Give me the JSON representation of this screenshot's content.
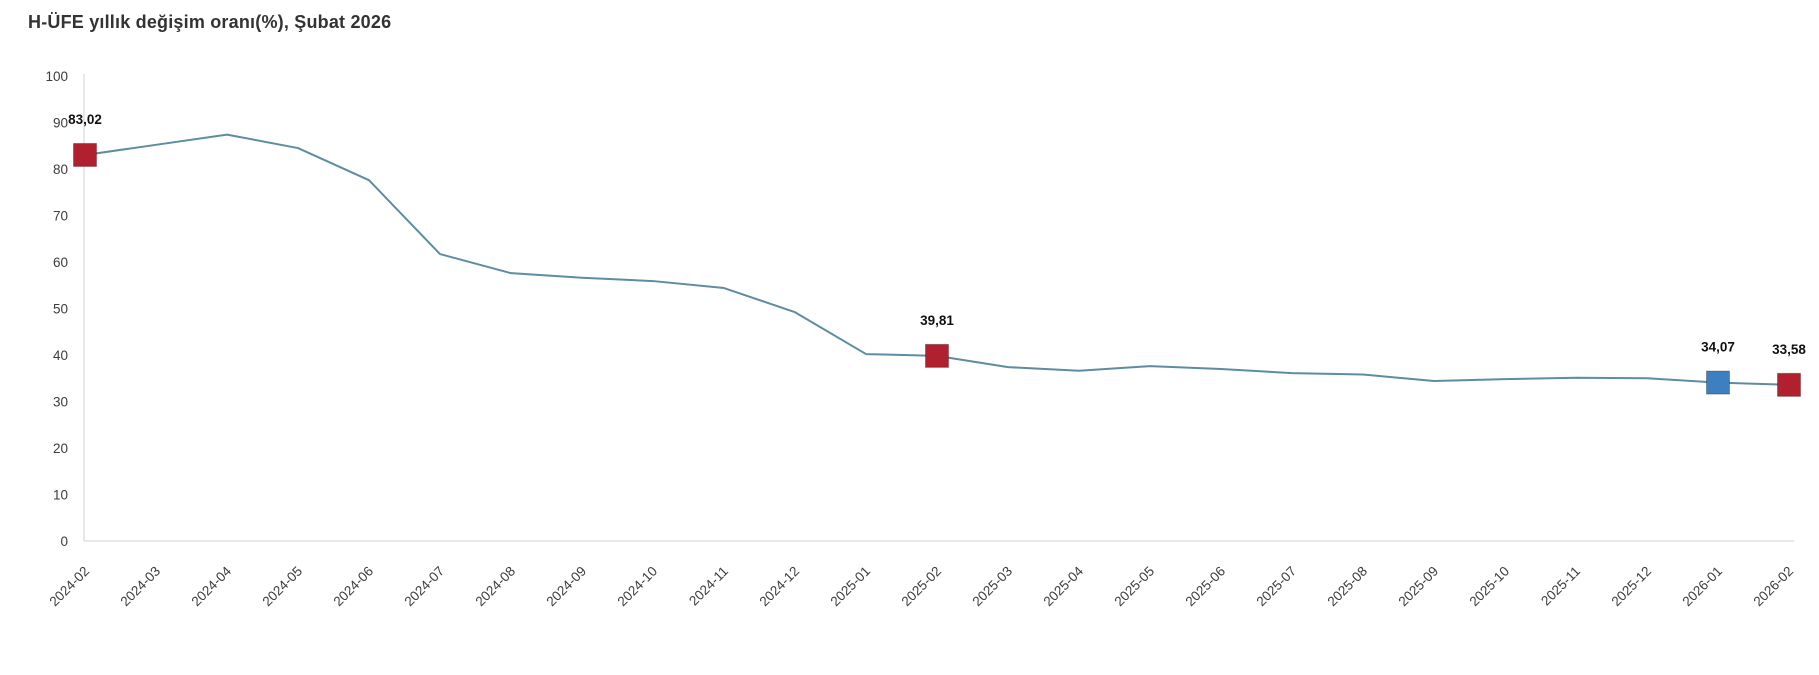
{
  "header": {
    "title": "H-ÜFE yıllık değişim oranı(%), Şubat 2026"
  },
  "colors": {
    "line": "#5d8ca3",
    "marker_red": "#b1202e",
    "marker_blue": "#3c80c0",
    "axis_line": "#dcdcdc",
    "tick_text": "#3c3c3c",
    "data_label_text": "#111111",
    "background": "#ffffff",
    "title_text": "#333333"
  },
  "chart_data": {
    "type": "line",
    "title": "H-ÜFE yıllık değişim oranı(%), Şubat 2026",
    "xlabel": "",
    "ylabel": "",
    "ylim": [
      0,
      100
    ],
    "yticks": [
      0,
      10,
      20,
      30,
      40,
      50,
      60,
      70,
      80,
      90,
      100
    ],
    "grid": false,
    "legend_position": "none",
    "x": [
      "2024-02",
      "2024-03",
      "2024-04",
      "2024-05",
      "2024-06",
      "2024-07",
      "2024-08",
      "2024-09",
      "2024-10",
      "2024-11",
      "2024-12",
      "2025-01",
      "2025-02",
      "2025-03",
      "2025-04",
      "2025-05",
      "2025-06",
      "2025-07",
      "2025-08",
      "2025-09",
      "2025-10",
      "2025-11",
      "2025-12",
      "2026-01",
      "2026-02"
    ],
    "series": [
      {
        "name": "H-ÜFE yıllık değişim oranı (%)",
        "color": "#5d8ca3",
        "values": [
          83.02,
          85.2,
          87.4,
          84.5,
          77.6,
          61.7,
          57.6,
          56.6,
          55.9,
          54.4,
          49.2,
          40.2,
          39.81,
          37.4,
          36.6,
          37.6,
          37.0,
          36.1,
          35.8,
          34.4,
          34.8,
          35.1,
          35.0,
          34.07,
          33.58
        ]
      }
    ],
    "labeled_points": [
      {
        "x": "2024-02",
        "value": 83.02,
        "display": "83,02",
        "marker": "square",
        "color": "#b1202e"
      },
      {
        "x": "2025-02",
        "value": 39.81,
        "display": "39,81",
        "marker": "square",
        "color": "#b1202e"
      },
      {
        "x": "2026-01",
        "value": 34.07,
        "display": "34,07",
        "marker": "square",
        "color": "#3c80c0"
      },
      {
        "x": "2026-02",
        "value": 33.58,
        "display": "33,58",
        "marker": "square",
        "color": "#b1202e"
      }
    ]
  }
}
